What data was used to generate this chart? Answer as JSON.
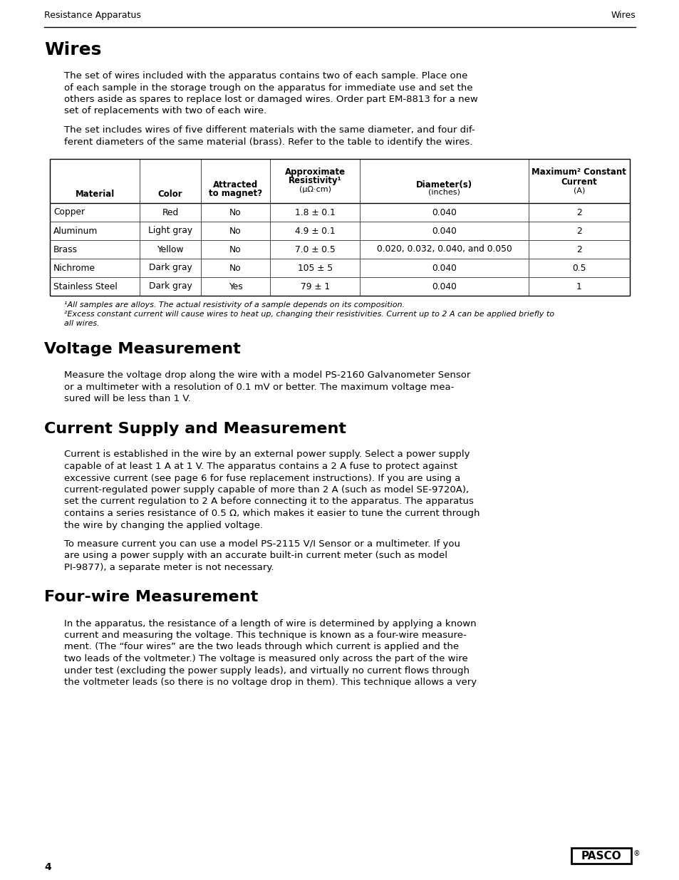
{
  "header_left": "Resistance Apparatus",
  "header_right": "Wires",
  "page_number": "4",
  "section1_title": "Wires",
  "section1_para1": "The set of wires included with the apparatus contains two of each sample. Place one\nof each sample in the storage trough on the apparatus for immediate use and set the\nothers aside as spares to replace lost or damaged wires. Order part EM-8813 for a new\nset of replacements with two of each wire.",
  "section1_para2": "The set includes wires of five different materials with the same diameter, and four dif-\nferent diameters of the same material (brass). Refer to the table to identify the wires.",
  "table_rows": [
    [
      "Copper",
      "Red",
      "No",
      "1.8 ± 0.1",
      "0.040",
      "2"
    ],
    [
      "Aluminum",
      "Light gray",
      "No",
      "4.9 ± 0.1",
      "0.040",
      "2"
    ],
    [
      "Brass",
      "Yellow",
      "No",
      "7.0 ± 0.5",
      "0.020, 0.032, 0.040, and 0.050",
      "2"
    ],
    [
      "Nichrome",
      "Dark gray",
      "No",
      "105 ± 5",
      "0.040",
      "0.5"
    ],
    [
      "Stainless Steel",
      "Dark gray",
      "Yes",
      "79 ± 1",
      "0.040",
      "1"
    ]
  ],
  "footnote1": "¹All samples are alloys. The actual resistivity of a sample depends on its composition.",
  "footnote2": "²Excess constant current will cause wires to heat up, changing their resistivities. Current up to 2 A can be applied briefly to\nall wires.",
  "section2_title": "Voltage Measurement",
  "section2_para": "Measure the voltage drop along the wire with a model PS-2160 Galvanometer Sensor\nor a multimeter with a resolution of 0.1 mV or better. The maximum voltage mea-\nsured will be less than 1 V.",
  "section3_title": "Current Supply and Measurement",
  "section3_para1": "Current is established in the wire by an external power supply. Select a power supply\ncapable of at least 1 A at 1 V. The apparatus contains a 2 A fuse to protect against\nexcessive current (see page 6 for fuse replacement instructions). If you are using a\ncurrent-regulated power supply capable of more than 2 A (such as model SE-9720A),\nset the current regulation to 2 A before connecting it to the apparatus. The apparatus\ncontains a series resistance of 0.5 Ω, which makes it easier to tune the current through\nthe wire by changing the applied voltage.",
  "section3_para2": "To measure current you can use a model PS-2115 V/I Sensor or a multimeter. If you\nare using a power supply with an accurate built-in current meter (such as model\nPI-9877), a separate meter is not necessary.",
  "section4_title": "Four-wire Measurement",
  "section4_para": "In the apparatus, the resistance of a length of wire is determined by applying a known\ncurrent and measuring the voltage. This technique is known as a four-wire measure-\nment. (The “four wires” are the two leads through which current is applied and the\ntwo leads of the voltmeter.) The voltage is measured only across the part of the wire\nunder test (excluding the power supply leads), and virtually no current flows through\nthe voltmeter leads (so there is no voltage drop in them). This technique allows a very",
  "bg_color": "#ffffff",
  "text_color": "#000000"
}
